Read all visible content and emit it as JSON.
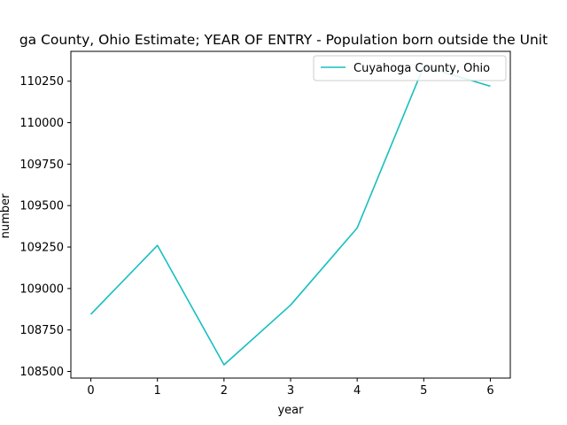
{
  "chart_data": {
    "type": "line",
    "title": "ga County, Ohio Estimate; YEAR OF ENTRY - Population born outside the Unit",
    "xlabel": "year",
    "ylabel": "number",
    "x": [
      0,
      1,
      2,
      3,
      4,
      5,
      6
    ],
    "xticks": [
      "0",
      "1",
      "2",
      "3",
      "4",
      "5",
      "6"
    ],
    "xlim": [
      -0.3,
      6.3
    ],
    "yticks": [
      "108500",
      "108750",
      "109000",
      "109250",
      "109500",
      "109750",
      "110000",
      "110250"
    ],
    "ytick_values": [
      108500,
      108750,
      109000,
      109250,
      109500,
      109750,
      110000,
      110250
    ],
    "ylim": [
      108460,
      110430
    ],
    "grid": false,
    "legend_position": "top-right",
    "series": [
      {
        "name": "Cuyahoga County, Ohio",
        "color": "#17bfbf",
        "values": [
          108845,
          109260,
          108540,
          108900,
          109365,
          110340,
          110220
        ]
      }
    ]
  }
}
